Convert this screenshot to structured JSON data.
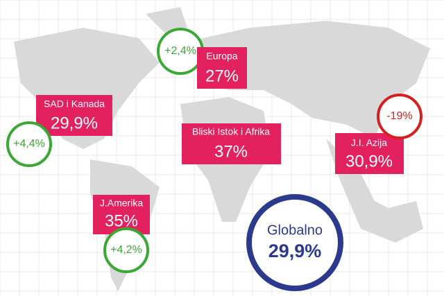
{
  "regions": [
    {
      "name": "Europa",
      "value": "27%",
      "change": "+2,4%"
    },
    {
      "name": "SAD i Kanada",
      "value": "29,9%",
      "change": "+4,4%"
    },
    {
      "name": "Bliski Istok i Afrika",
      "value": "37%"
    },
    {
      "name": "J.I. Azija",
      "value": "30,9%",
      "change": "-19%"
    },
    {
      "name": "J.Amerika",
      "value": "35%",
      "change": "+4,2%"
    }
  ],
  "global": {
    "name": "Globalno",
    "value": "29,9%"
  }
}
